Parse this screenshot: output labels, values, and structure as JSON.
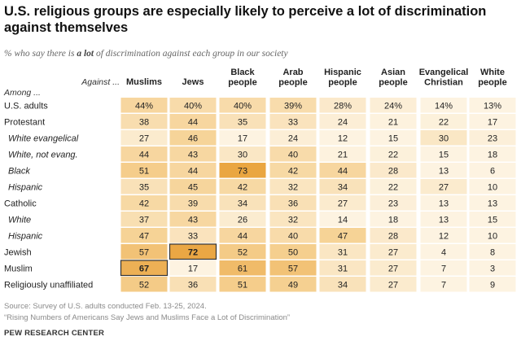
{
  "title": "U.S. religious groups are especially likely to perceive a lot of discrimination against themselves",
  "subtitle": {
    "before": "% who say there is ",
    "emphasis": "a lot",
    "after": " of discrimination against each group in our society"
  },
  "header": {
    "among": "Among ...",
    "against": "Against ..."
  },
  "chart_data": {
    "type": "table",
    "columns": [
      "Muslims",
      "Jews",
      "Black people",
      "Arab people",
      "Hispanic people",
      "Asian people",
      "Evangelical Christian",
      "White people"
    ],
    "rows": [
      {
        "label": "U.S. adults",
        "indent": false,
        "values": [
          44,
          40,
          40,
          39,
          28,
          24,
          14,
          13
        ]
      },
      {
        "label": "Protestant",
        "indent": false,
        "values": [
          38,
          44,
          35,
          33,
          24,
          21,
          22,
          17
        ]
      },
      {
        "label": "White evangelical",
        "indent": true,
        "values": [
          27,
          46,
          17,
          24,
          12,
          15,
          30,
          23
        ]
      },
      {
        "label": "White, not evang.",
        "indent": true,
        "values": [
          44,
          43,
          30,
          40,
          21,
          22,
          15,
          18
        ]
      },
      {
        "label": "Black",
        "indent": true,
        "values": [
          51,
          44,
          73,
          42,
          44,
          28,
          13,
          6
        ]
      },
      {
        "label": "Hispanic",
        "indent": true,
        "values": [
          35,
          45,
          42,
          32,
          34,
          22,
          27,
          10
        ]
      },
      {
        "label": "Catholic",
        "indent": false,
        "values": [
          42,
          39,
          34,
          36,
          27,
          23,
          13,
          13
        ]
      },
      {
        "label": "White",
        "indent": true,
        "values": [
          37,
          43,
          26,
          32,
          14,
          18,
          13,
          15
        ]
      },
      {
        "label": "Hispanic",
        "indent": true,
        "values": [
          47,
          33,
          44,
          40,
          47,
          28,
          12,
          10
        ]
      },
      {
        "label": "Jewish",
        "indent": false,
        "values": [
          57,
          72,
          52,
          50,
          31,
          27,
          4,
          8
        ]
      },
      {
        "label": "Muslim",
        "indent": false,
        "values": [
          67,
          17,
          61,
          57,
          31,
          27,
          7,
          3
        ]
      },
      {
        "label": "Religiously unaffiliated",
        "indent": false,
        "values": [
          52,
          36,
          51,
          49,
          34,
          27,
          7,
          9
        ]
      }
    ],
    "first_row_percent": true,
    "bold_outlined_cells": [
      {
        "row": 10,
        "col": 0
      },
      {
        "row": 9,
        "col": 1
      }
    ]
  },
  "colors": {
    "scale_low": "#fdf3e1",
    "scale_mid": "#f5cf8e",
    "scale_high": "#e9a23a",
    "outline": "#333333"
  },
  "footer": {
    "source": "Source: Survey of U.S. adults conducted Feb. 13-25, 2024.",
    "report": "“Rising Numbers of Americans Say Jews and Muslims Face a Lot of Discrimination”",
    "brand": "PEW RESEARCH CENTER"
  }
}
